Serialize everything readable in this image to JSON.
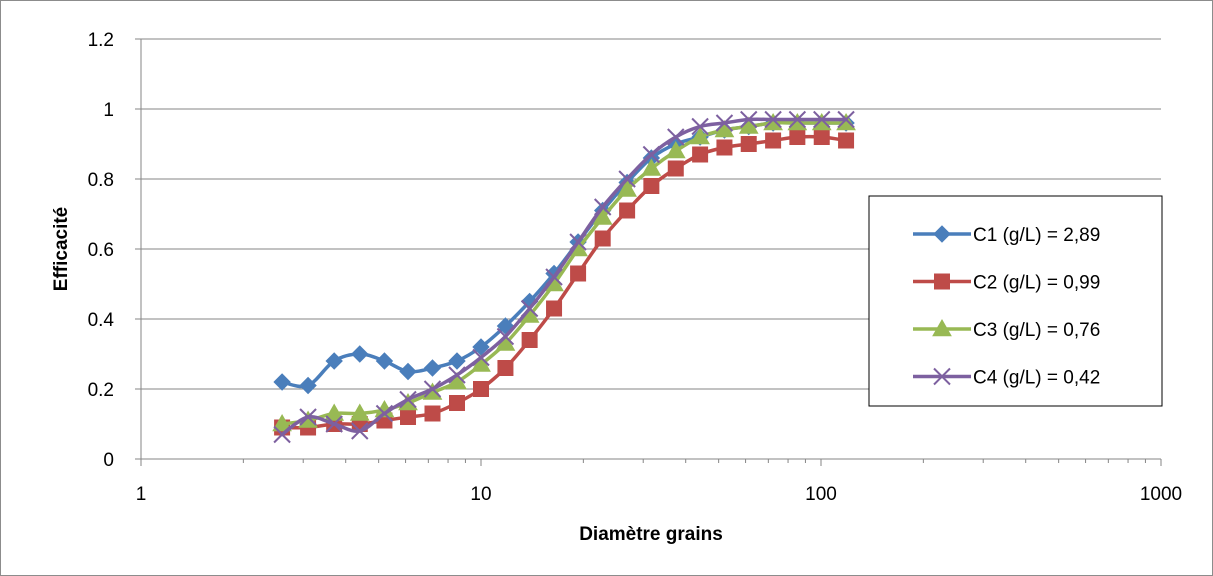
{
  "chart_data": {
    "type": "line",
    "title": "",
    "xlabel": "Diamètre grains",
    "ylabel": "Efficacité",
    "x_scale": "log",
    "xlim": [
      1,
      1000
    ],
    "ylim": [
      0,
      1.2
    ],
    "x_ticks": [
      1,
      10,
      100,
      1000
    ],
    "x_tick_labels": [
      "1",
      "10",
      "100",
      "1000"
    ],
    "y_ticks": [
      0,
      0.2,
      0.4,
      0.6,
      0.8,
      1,
      1.2
    ],
    "y_tick_labels": [
      "0",
      "0.2",
      "0.4",
      "0.6",
      "0.8",
      "1",
      "1.2"
    ],
    "grid": "horizontal",
    "legend_position": "right",
    "x": [
      2.6,
      3.1,
      3.7,
      4.4,
      5.2,
      6.1,
      7.2,
      8.5,
      10,
      11.8,
      13.9,
      16.4,
      19.3,
      22.8,
      26.9,
      31.7,
      37.4,
      44.1,
      52,
      61.3,
      72.3,
      85.2,
      100.5,
      118.5
    ],
    "series": [
      {
        "name": "C1 (g/L) = 2,89",
        "color": "#4a7ebb",
        "marker": "diamond",
        "values": [
          0.22,
          0.21,
          0.28,
          0.3,
          0.28,
          0.25,
          0.26,
          0.28,
          0.32,
          0.38,
          0.45,
          0.53,
          0.62,
          0.71,
          0.79,
          0.86,
          0.9,
          0.92,
          0.94,
          0.95,
          0.96,
          0.96,
          0.96,
          0.96
        ]
      },
      {
        "name": "C2 (g/L) = 0,99",
        "color": "#be4b48",
        "marker": "square",
        "values": [
          0.09,
          0.09,
          0.1,
          0.1,
          0.11,
          0.12,
          0.13,
          0.16,
          0.2,
          0.26,
          0.34,
          0.43,
          0.53,
          0.63,
          0.71,
          0.78,
          0.83,
          0.87,
          0.89,
          0.9,
          0.91,
          0.92,
          0.92,
          0.91
        ]
      },
      {
        "name": "C3 (g/L) = 0,76",
        "color": "#98b954",
        "marker": "triangle",
        "values": [
          0.1,
          0.11,
          0.13,
          0.13,
          0.14,
          0.16,
          0.19,
          0.22,
          0.27,
          0.33,
          0.41,
          0.5,
          0.6,
          0.69,
          0.77,
          0.83,
          0.88,
          0.92,
          0.94,
          0.95,
          0.96,
          0.96,
          0.96,
          0.96
        ]
      },
      {
        "name": "C4 (g/L) = 0,42",
        "color": "#7d60a0",
        "marker": "x",
        "values": [
          0.07,
          0.12,
          0.1,
          0.08,
          0.13,
          0.17,
          0.2,
          0.24,
          0.29,
          0.35,
          0.43,
          0.52,
          0.62,
          0.72,
          0.8,
          0.87,
          0.92,
          0.95,
          0.96,
          0.97,
          0.97,
          0.97,
          0.97,
          0.97
        ]
      }
    ]
  }
}
